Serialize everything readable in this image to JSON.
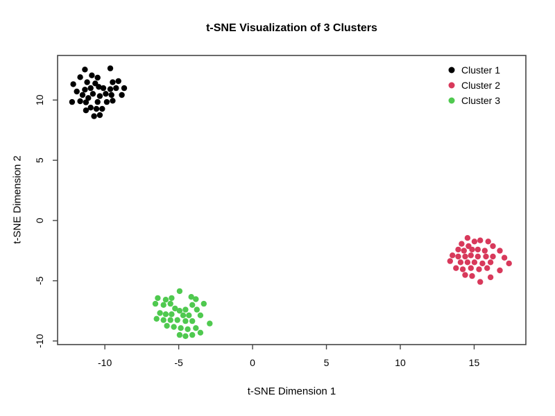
{
  "page": {
    "background": "#ffffff"
  },
  "chart_data": {
    "type": "scatter",
    "title": "t-SNE Visualization of 3 Clusters",
    "xlabel": "t-SNE Dimension 1",
    "ylabel": "t-SNE Dimension 2",
    "xlim": [
      -13.2,
      18.5
    ],
    "ylim": [
      -10.3,
      13.7
    ],
    "x_ticks": [
      -10,
      -5,
      0,
      5,
      10,
      15
    ],
    "y_ticks": [
      -10,
      -5,
      0,
      5,
      10
    ],
    "grid": false,
    "axis_color": "#444444",
    "legend": {
      "position": "top-right",
      "entries": [
        {
          "label": "Cluster 1",
          "color": "#000000"
        },
        {
          "label": "Cluster 2",
          "color": "#D8395B"
        },
        {
          "label": "Cluster 3",
          "color": "#4FC94F"
        }
      ]
    },
    "series": [
      {
        "name": "Cluster 1",
        "color": "#000000",
        "points": [
          [
            -9.63,
            12.63
          ],
          [
            -11.35,
            12.53
          ],
          [
            -10.88,
            12.05
          ],
          [
            -11.67,
            11.9
          ],
          [
            -10.49,
            11.86
          ],
          [
            -11.2,
            11.48
          ],
          [
            -12.14,
            11.32
          ],
          [
            -10.65,
            11.38
          ],
          [
            -9.47,
            11.48
          ],
          [
            -9.08,
            11.57
          ],
          [
            -10.96,
            10.99
          ],
          [
            -11.35,
            10.86
          ],
          [
            -10.41,
            11.09
          ],
          [
            -10.1,
            10.99
          ],
          [
            -9.63,
            10.9
          ],
          [
            -9.24,
            10.99
          ],
          [
            -8.69,
            10.99
          ],
          [
            -11.9,
            10.71
          ],
          [
            -11.51,
            10.42
          ],
          [
            -10.81,
            10.52
          ],
          [
            -11.12,
            10.17
          ],
          [
            -10.34,
            10.33
          ],
          [
            -9.94,
            10.52
          ],
          [
            -9.55,
            10.42
          ],
          [
            -8.85,
            10.42
          ],
          [
            -12.22,
            9.84
          ],
          [
            -11.67,
            9.9
          ],
          [
            -11.28,
            9.81
          ],
          [
            -10.49,
            9.84
          ],
          [
            -9.87,
            9.84
          ],
          [
            -9.47,
            9.94
          ],
          [
            -10.96,
            9.37
          ],
          [
            -10.57,
            9.27
          ],
          [
            -11.28,
            9.14
          ],
          [
            -10.18,
            9.27
          ],
          [
            -10.73,
            8.66
          ],
          [
            -10.34,
            8.75
          ]
        ]
      },
      {
        "name": "Cluster 2",
        "color": "#D8395B",
        "points": [
          [
            14.55,
            -1.45
          ],
          [
            14.15,
            -1.94
          ],
          [
            15.02,
            -1.74
          ],
          [
            15.41,
            -1.65
          ],
          [
            15.95,
            -1.74
          ],
          [
            14.62,
            -2.13
          ],
          [
            16.27,
            -2.13
          ],
          [
            13.92,
            -2.41
          ],
          [
            14.31,
            -2.51
          ],
          [
            14.86,
            -2.41
          ],
          [
            15.25,
            -2.41
          ],
          [
            15.72,
            -2.51
          ],
          [
            16.74,
            -2.51
          ],
          [
            13.53,
            -2.89
          ],
          [
            13.92,
            -2.99
          ],
          [
            14.39,
            -2.99
          ],
          [
            14.78,
            -2.89
          ],
          [
            15.25,
            -2.99
          ],
          [
            15.8,
            -2.99
          ],
          [
            16.27,
            -2.99
          ],
          [
            17.05,
            -3.09
          ],
          [
            13.37,
            -3.37
          ],
          [
            14.08,
            -3.47
          ],
          [
            14.55,
            -3.47
          ],
          [
            15.02,
            -3.47
          ],
          [
            15.56,
            -3.56
          ],
          [
            16.11,
            -3.47
          ],
          [
            17.36,
            -3.56
          ],
          [
            13.77,
            -3.95
          ],
          [
            14.23,
            -4.05
          ],
          [
            14.78,
            -3.95
          ],
          [
            15.33,
            -4.05
          ],
          [
            15.88,
            -3.95
          ],
          [
            16.74,
            -4.14
          ],
          [
            14.39,
            -4.52
          ],
          [
            14.86,
            -4.61
          ],
          [
            16.11,
            -4.71
          ],
          [
            15.41,
            -5.1
          ]
        ]
      },
      {
        "name": "Cluster 3",
        "color": "#4FC94F",
        "points": [
          [
            -4.94,
            -5.86
          ],
          [
            -6.42,
            -6.44
          ],
          [
            -5.88,
            -6.57
          ],
          [
            -5.48,
            -6.44
          ],
          [
            -4.15,
            -6.34
          ],
          [
            -3.84,
            -6.53
          ],
          [
            -6.58,
            -6.91
          ],
          [
            -6.03,
            -7.01
          ],
          [
            -5.56,
            -6.91
          ],
          [
            -3.3,
            -6.91
          ],
          [
            -4.08,
            -7.01
          ],
          [
            -5.25,
            -7.3
          ],
          [
            -4.94,
            -7.49
          ],
          [
            -4.54,
            -7.4
          ],
          [
            -3.77,
            -7.4
          ],
          [
            -6.27,
            -7.68
          ],
          [
            -5.88,
            -7.78
          ],
          [
            -5.48,
            -7.78
          ],
          [
            -4.7,
            -7.87
          ],
          [
            -4.31,
            -7.87
          ],
          [
            -3.53,
            -7.87
          ],
          [
            -6.5,
            -8.16
          ],
          [
            -6.03,
            -8.26
          ],
          [
            -5.56,
            -8.26
          ],
          [
            -5.09,
            -8.26
          ],
          [
            -4.54,
            -8.35
          ],
          [
            -4.08,
            -8.35
          ],
          [
            -2.9,
            -8.55
          ],
          [
            -5.8,
            -8.74
          ],
          [
            -5.33,
            -8.83
          ],
          [
            -4.86,
            -8.93
          ],
          [
            -4.39,
            -9.02
          ],
          [
            -3.84,
            -8.93
          ],
          [
            -4.94,
            -9.5
          ],
          [
            -4.54,
            -9.6
          ],
          [
            -4.08,
            -9.5
          ],
          [
            -3.53,
            -9.31
          ]
        ]
      }
    ]
  }
}
